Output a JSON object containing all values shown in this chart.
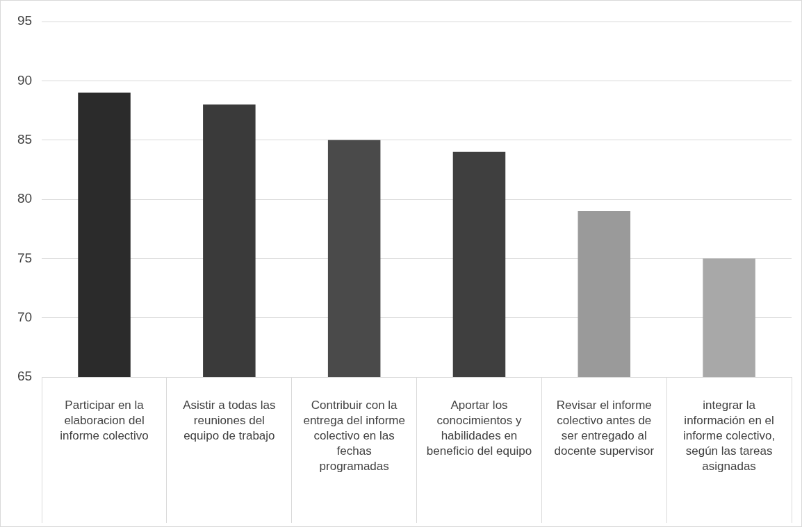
{
  "chart_data": {
    "type": "bar",
    "categories": [
      "Participar en la elaboracion del informe colectivo",
      "Asistir a todas las reuniones del equipo de trabajo",
      "Contribuir con la entrega del informe colectivo en las fechas programadas",
      "Aportar los conocimientos y habilidades en beneficio del equipo",
      "Revisar el informe colectivo antes de ser entregado al docente supervisor",
      "integrar la información en el informe colectivo, según las tareas asignadas"
    ],
    "values": [
      89,
      88,
      85,
      84,
      79,
      75
    ],
    "colors": [
      "#2b2b2b",
      "#3a3a3a",
      "#4a4a4a",
      "#3f3f3f",
      "#9a9a9a",
      "#a8a8a8"
    ],
    "ylim": [
      65,
      95
    ],
    "yticks": [
      65,
      70,
      75,
      80,
      85,
      90,
      95
    ],
    "grid": "y",
    "legend": false
  }
}
